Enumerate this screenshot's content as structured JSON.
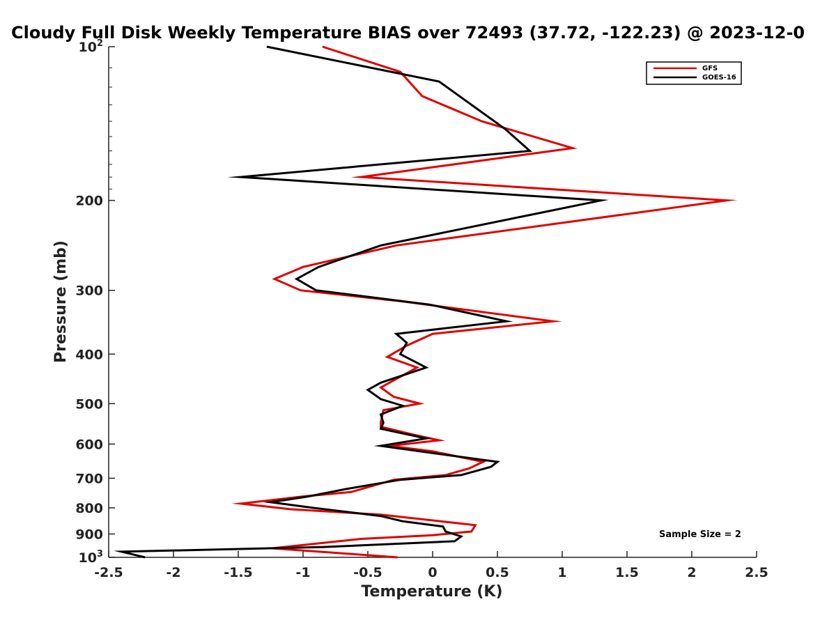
{
  "chart_data": {
    "type": "line",
    "title": "Cloudy Full Disk Weekly Temperature BIAS over 72493 (37.72, -122.23) @ 2023-12-0",
    "xlabel": "Temperature (K)",
    "ylabel": "Pressure (mb)",
    "xlim": [
      -2.5,
      2.5
    ],
    "ylim": [
      100,
      1000
    ],
    "yscale": "log",
    "yreversed": true,
    "grid": false,
    "legend_position": "top-right",
    "x_ticks": [
      "-2.5",
      "-2",
      "-1.5",
      "-1",
      "-0.5",
      "0",
      "0.5",
      "1",
      "1.5",
      "2",
      "2.5"
    ],
    "y_ticks": [
      {
        "value": 100,
        "label": "10",
        "sup": "2"
      },
      {
        "value": 200,
        "label": "200",
        "sup": ""
      },
      {
        "value": 300,
        "label": "300",
        "sup": ""
      },
      {
        "value": 400,
        "label": "400",
        "sup": ""
      },
      {
        "value": 500,
        "label": "500",
        "sup": ""
      },
      {
        "value": 600,
        "label": "600",
        "sup": ""
      },
      {
        "value": 700,
        "label": "700",
        "sup": ""
      },
      {
        "value": 800,
        "label": "800",
        "sup": ""
      },
      {
        "value": 900,
        "label": "900",
        "sup": ""
      },
      {
        "value": 1000,
        "label": "10",
        "sup": "3"
      }
    ],
    "series": [
      {
        "name": "GFS",
        "color": "#e00000",
        "points": [
          [
            -0.85,
            100
          ],
          [
            -0.25,
            112
          ],
          [
            -0.08,
            125
          ],
          [
            0.38,
            140
          ],
          [
            1.08,
            158
          ],
          [
            -0.55,
            180
          ],
          [
            2.27,
            200
          ],
          [
            -0.28,
            245
          ],
          [
            -1.0,
            270
          ],
          [
            -1.22,
            285
          ],
          [
            -1.02,
            300
          ],
          [
            -0.25,
            315
          ],
          [
            0.93,
            345
          ],
          [
            0.0,
            365
          ],
          [
            -0.2,
            385
          ],
          [
            -0.35,
            405
          ],
          [
            -0.12,
            425
          ],
          [
            -0.4,
            465
          ],
          [
            -0.3,
            485
          ],
          [
            -0.1,
            500
          ],
          [
            -0.38,
            515
          ],
          [
            -0.4,
            545
          ],
          [
            -0.4,
            555
          ],
          [
            -0.15,
            575
          ],
          [
            0.05,
            590
          ],
          [
            -0.33,
            605
          ],
          [
            0.0,
            620
          ],
          [
            0.39,
            650
          ],
          [
            0.28,
            670
          ],
          [
            0.1,
            690
          ],
          [
            -0.3,
            705
          ],
          [
            -0.63,
            745
          ],
          [
            -1.0,
            760
          ],
          [
            -1.48,
            785
          ],
          [
            -1.1,
            805
          ],
          [
            -0.4,
            825
          ],
          [
            0.33,
            865
          ],
          [
            0.3,
            890
          ],
          [
            0.0,
            905
          ],
          [
            -0.55,
            920
          ],
          [
            -1.24,
            960
          ],
          [
            -0.27,
            1000
          ]
        ]
      },
      {
        "name": "GOES-16",
        "color": "#000000",
        "points": [
          [
            -1.28,
            100
          ],
          [
            0.05,
            117
          ],
          [
            0.56,
            145
          ],
          [
            0.75,
            160
          ],
          [
            -1.48,
            180
          ],
          [
            1.3,
            200
          ],
          [
            -0.4,
            245
          ],
          [
            -0.88,
            270
          ],
          [
            -1.05,
            285
          ],
          [
            -0.9,
            300
          ],
          [
            -0.02,
            320
          ],
          [
            0.57,
            345
          ],
          [
            -0.28,
            365
          ],
          [
            -0.2,
            380
          ],
          [
            -0.25,
            400
          ],
          [
            -0.05,
            425
          ],
          [
            -0.4,
            455
          ],
          [
            -0.5,
            470
          ],
          [
            -0.4,
            490
          ],
          [
            -0.23,
            505
          ],
          [
            -0.4,
            525
          ],
          [
            -0.38,
            545
          ],
          [
            -0.4,
            560
          ],
          [
            -0.05,
            585
          ],
          [
            -0.4,
            605
          ],
          [
            -0.1,
            620
          ],
          [
            0.5,
            650
          ],
          [
            0.45,
            665
          ],
          [
            0.22,
            690
          ],
          [
            -0.25,
            705
          ],
          [
            -0.67,
            735
          ],
          [
            -0.96,
            760
          ],
          [
            -1.25,
            780
          ],
          [
            -0.92,
            800
          ],
          [
            -0.4,
            830
          ],
          [
            -0.23,
            850
          ],
          [
            0.08,
            870
          ],
          [
            0.1,
            890
          ],
          [
            0.22,
            910
          ],
          [
            0.17,
            930
          ],
          [
            -0.85,
            955
          ],
          [
            -2.4,
            975
          ],
          [
            -2.22,
            1000
          ]
        ]
      }
    ],
    "annotation": "Sample Size = 2"
  }
}
